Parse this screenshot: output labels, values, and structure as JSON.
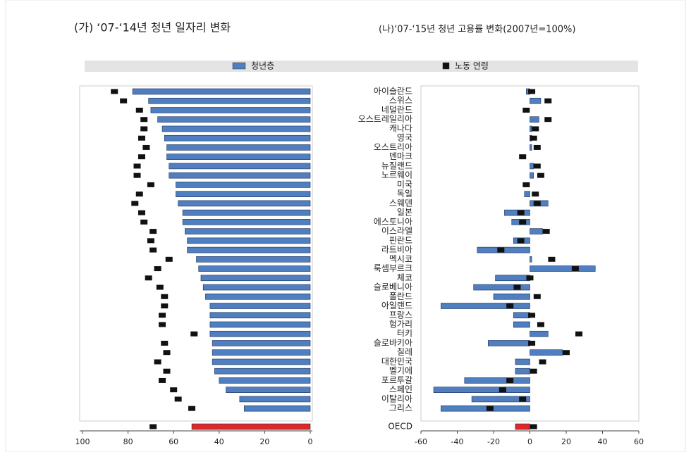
{
  "legend": [
    {
      "name": "청년층",
      "color": "#4f7fc0"
    },
    {
      "name": "노동 연령",
      "color": "#111111"
    }
  ],
  "chart_data": [
    {
      "type": "hbar",
      "title": "(가) ‘07-‘14년 청년 일자리 변화",
      "categories": [
        null,
        null,
        null,
        null,
        null,
        null,
        null,
        null,
        null,
        null,
        null,
        null,
        null,
        null,
        null,
        null,
        null,
        null,
        null,
        null,
        null,
        null,
        null,
        null,
        null,
        null,
        null,
        null,
        null,
        null,
        null,
        null,
        null,
        null,
        null,
        null
      ],
      "series": [
        {
          "colors": [
            "#4f7fc0",
            "#4f7fc0",
            "#4f7fc0",
            "#4f7fc0",
            "#4f7fc0",
            "#4f7fc0",
            "#4f7fc0",
            "#4f7fc0",
            "#4f7fc0",
            "#4f7fc0",
            "#4f7fc0",
            "#4f7fc0",
            "#4f7fc0",
            "#4f7fc0",
            "#4f7fc0",
            "#4f7fc0",
            "#4f7fc0",
            "#4f7fc0",
            "#4f7fc0",
            "#4f7fc0",
            "#4f7fc0",
            "#4f7fc0",
            "#4f7fc0",
            "#4f7fc0",
            "#4f7fc0",
            "#4f7fc0",
            "#4f7fc0",
            "#4f7fc0",
            "#4f7fc0",
            "#4f7fc0",
            "#4f7fc0",
            "#4f7fc0",
            "#4f7fc0",
            "#4f7fc0",
            "#4f7fc0",
            "#e02626"
          ],
          "values": [
            78,
            71,
            70,
            67,
            65,
            64,
            63,
            63,
            62,
            62,
            59,
            59,
            58,
            56,
            56,
            55,
            54,
            54,
            50,
            49,
            48,
            47,
            46,
            44,
            44,
            44,
            44,
            43,
            43,
            43,
            42,
            40,
            37,
            31,
            29,
            52
          ]
        },
        {
          "color": "#111111",
          "marker": true,
          "values": [
            86,
            82,
            75,
            73,
            73,
            74,
            72,
            74,
            76,
            76,
            70,
            75,
            77,
            74,
            73,
            69,
            70,
            69,
            62,
            67,
            71,
            66,
            64,
            64,
            65,
            65,
            51,
            64,
            63,
            67,
            63,
            65,
            60,
            58,
            52,
            69
          ]
        }
      ],
      "xlim": [
        100,
        0
      ],
      "xticks": [
        100,
        80,
        60,
        40,
        20,
        0
      ]
    },
    {
      "type": "hbar",
      "title": "(나)‘07-‘15년 청년 고용률 변화(2007년=100%)",
      "categories": [
        "아이슬란드",
        "스위스",
        "네덜란드",
        "오스트레일리아",
        "캐나다",
        "영국",
        "오스트리아",
        "덴마크",
        "뉴질랜드",
        "노르웨이",
        "미국",
        "독일",
        "스웨덴",
        "일본",
        "에스토니아",
        "이스라엘",
        "핀란드",
        "라트비아",
        "멕시코",
        "룩셈부르크",
        "체코",
        "슬로베니아",
        "폴란드",
        "아일랜드",
        "프랑스",
        "헝가리",
        "터키",
        "슬로바키아",
        "칠레",
        "대한민국",
        "벨기에",
        "포르투갈",
        "스페인",
        "이탈리아",
        "그리스",
        "OECD"
      ],
      "series": [
        {
          "colors": [
            "#4f7fc0",
            "#4f7fc0",
            "#4f7fc0",
            "#4f7fc0",
            "#4f7fc0",
            "#4f7fc0",
            "#4f7fc0",
            "#4f7fc0",
            "#4f7fc0",
            "#4f7fc0",
            "#4f7fc0",
            "#4f7fc0",
            "#4f7fc0",
            "#4f7fc0",
            "#4f7fc0",
            "#4f7fc0",
            "#4f7fc0",
            "#4f7fc0",
            "#4f7fc0",
            "#4f7fc0",
            "#4f7fc0",
            "#4f7fc0",
            "#4f7fc0",
            "#4f7fc0",
            "#4f7fc0",
            "#4f7fc0",
            "#4f7fc0",
            "#4f7fc0",
            "#4f7fc0",
            "#4f7fc0",
            "#4f7fc0",
            "#4f7fc0",
            "#4f7fc0",
            "#4f7fc0",
            "#4f7fc0",
            "#e02626"
          ],
          "values": [
            -2,
            6,
            0,
            5,
            1,
            1,
            1,
            0,
            2,
            2,
            0,
            -3,
            10,
            -14,
            -10,
            7,
            -9,
            -29,
            1,
            36,
            -19,
            -31,
            -20,
            -49,
            -9,
            -9,
            10,
            -23,
            18,
            -8,
            -8,
            -36,
            -53,
            -32,
            -49,
            -8
          ]
        },
        {
          "color": "#111111",
          "marker": true,
          "values": [
            1,
            10,
            -2,
            10,
            3,
            2,
            4,
            -4,
            4,
            6,
            -2,
            3,
            4,
            -5,
            -4,
            9,
            -5,
            -16,
            12,
            25,
            0,
            -7,
            4,
            -11,
            1,
            6,
            27,
            1,
            20,
            7,
            2,
            -11,
            -15,
            -4,
            -22,
            2
          ]
        }
      ],
      "xlim": [
        -60,
        60
      ],
      "xticks": [
        -60,
        -40,
        -20,
        0,
        20,
        40,
        60
      ]
    }
  ]
}
